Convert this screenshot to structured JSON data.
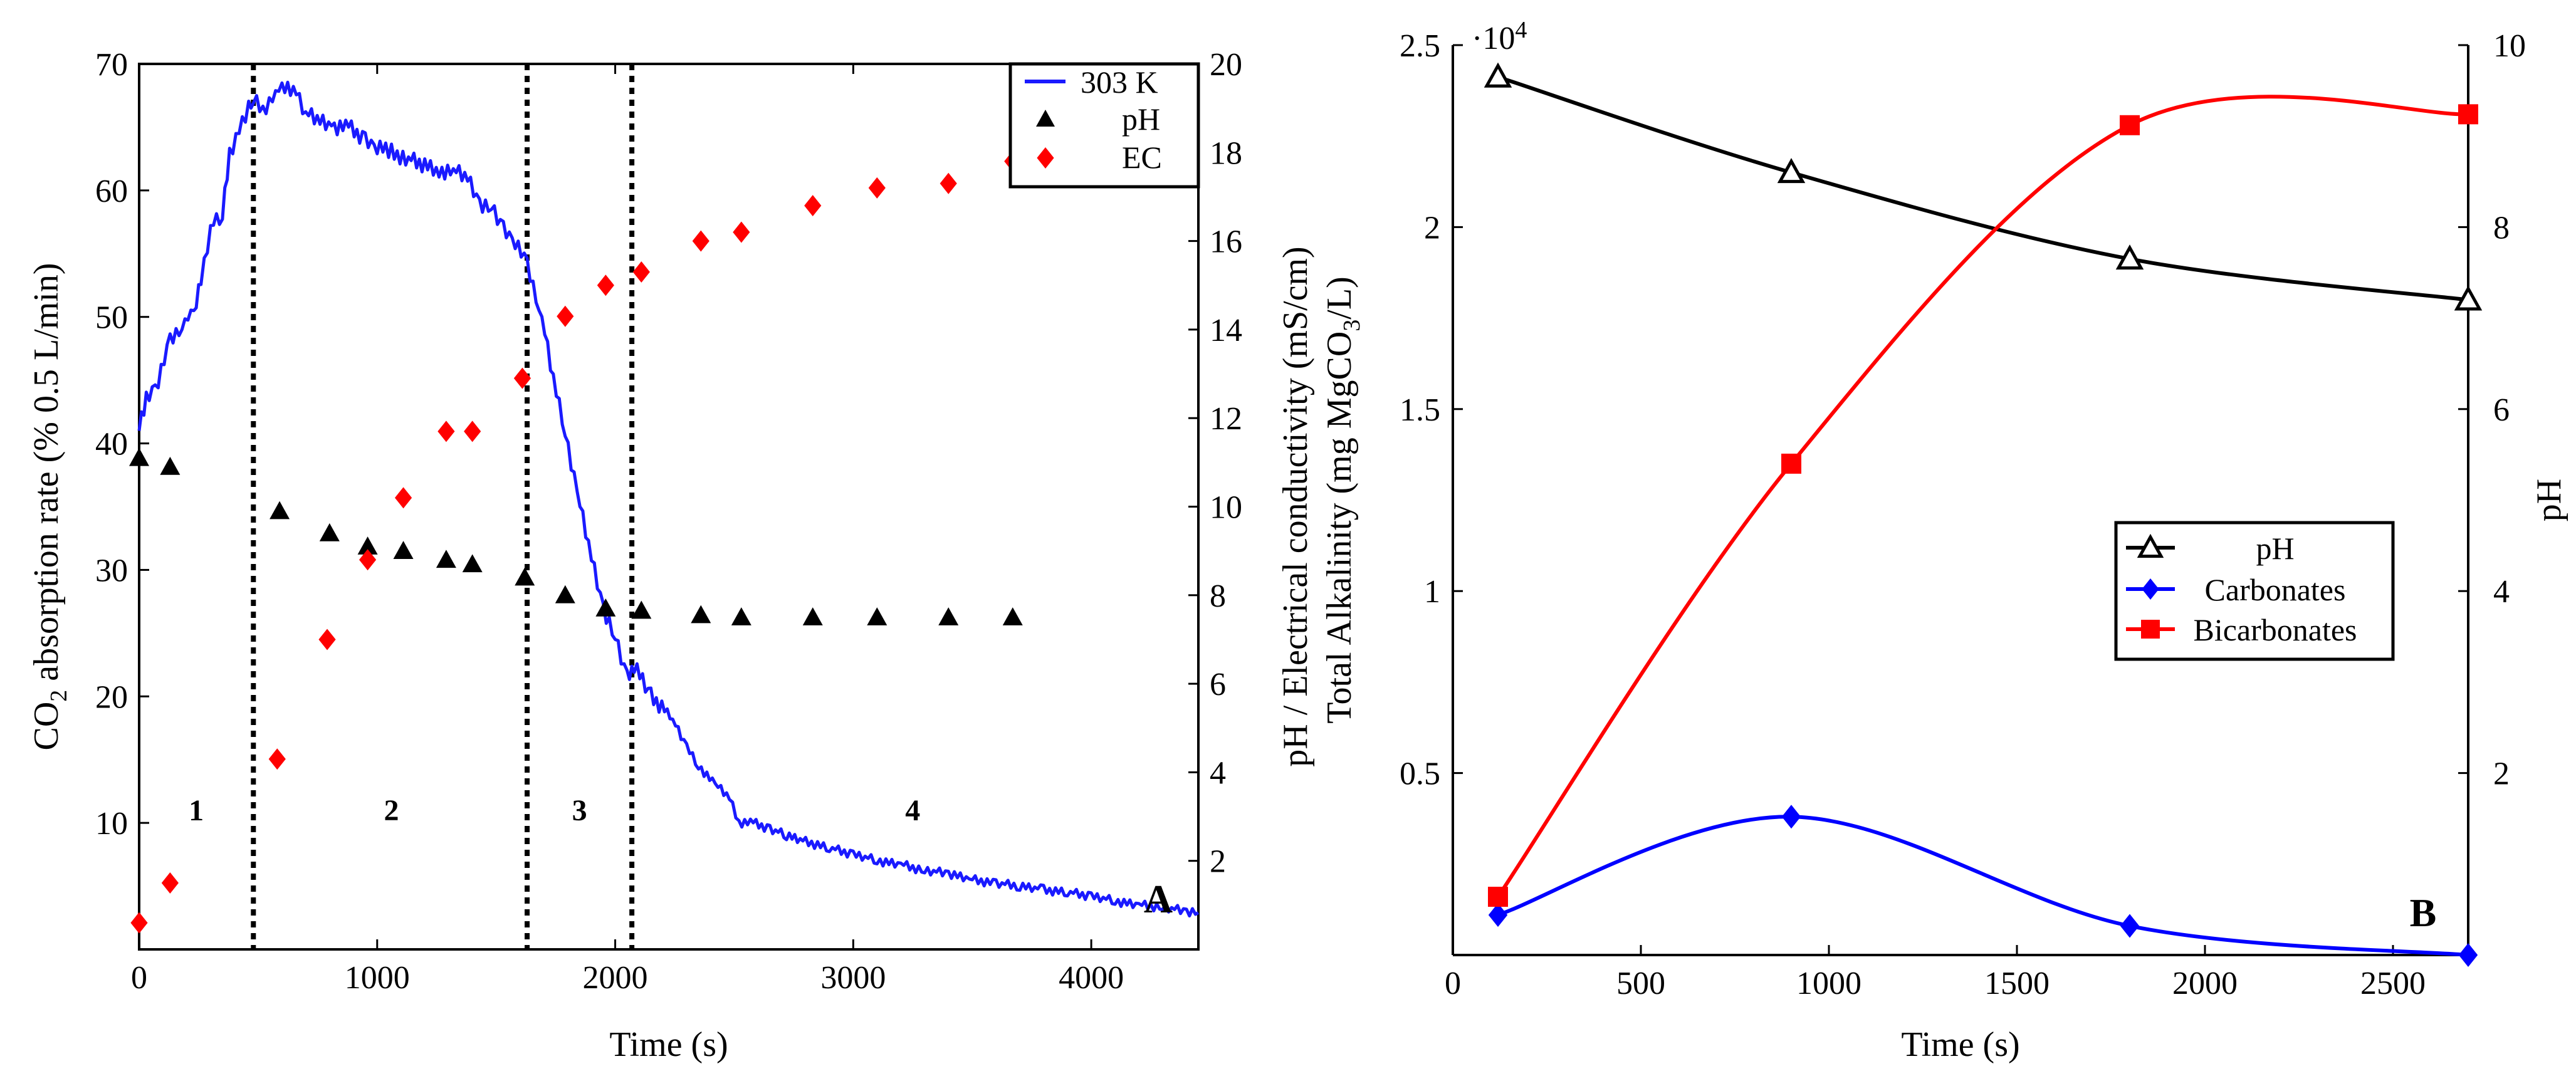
{
  "chart_data": [
    {
      "panel": "A",
      "type": "line+scatter",
      "xlabel": "Time (s)",
      "ylabel_left_main": "CO",
      "ylabel_left_sub": "2",
      "ylabel_left_rest": " absorption rate (% 0.5 L/min)",
      "ylabel_right": "pH / Electrical conductivity (mS/cm)",
      "xlim": [
        0,
        4450
      ],
      "ylim_left": [
        0,
        70
      ],
      "ylim_right": [
        0,
        20
      ],
      "xticks": [
        0,
        1000,
        2000,
        3000,
        4000
      ],
      "yticks_left": [
        10,
        20,
        30,
        40,
        50,
        60,
        70
      ],
      "yticks_right": [
        2,
        4,
        6,
        8,
        10,
        12,
        14,
        16,
        18,
        20
      ],
      "legend": [
        "303 K",
        "pH",
        "EC"
      ],
      "legend_position": "top-right",
      "stage_boundaries": [
        480,
        1630,
        2070
      ],
      "stage_labels": [
        {
          "label": "1",
          "x": 240
        },
        {
          "label": "2",
          "x": 1060
        },
        {
          "label": "3",
          "x": 1850
        },
        {
          "label": "4",
          "x": 3250
        }
      ],
      "stage_label_y": 11,
      "panel_letter": "A",
      "series": [
        {
          "name": "303 K",
          "axis": "left",
          "color": "#1a1aff",
          "points": [
            [
              0,
              41
            ],
            [
              30,
              43.5
            ],
            [
              80,
              45
            ],
            [
              130,
              48
            ],
            [
              180,
              49.5
            ],
            [
              230,
              50
            ],
            [
              260,
              53
            ],
            [
              300,
              57
            ],
            [
              350,
              58
            ],
            [
              380,
              63
            ],
            [
              420,
              64.5
            ],
            [
              460,
              66.5
            ],
            [
              480,
              67.5
            ],
            [
              520,
              66
            ],
            [
              560,
              67.5
            ],
            [
              600,
              68
            ],
            [
              660,
              68
            ],
            [
              700,
              66
            ],
            [
              760,
              65.5
            ],
            [
              820,
              65
            ],
            [
              880,
              65
            ],
            [
              950,
              64
            ],
            [
              1000,
              63.5
            ],
            [
              1060,
              63
            ],
            [
              1120,
              62.5
            ],
            [
              1200,
              62
            ],
            [
              1260,
              61.5
            ],
            [
              1320,
              61.5
            ],
            [
              1380,
              61
            ],
            [
              1430,
              59
            ],
            [
              1480,
              58.5
            ],
            [
              1530,
              57
            ],
            [
              1580,
              56
            ],
            [
              1630,
              54
            ],
            [
              1680,
              51
            ],
            [
              1740,
              45
            ],
            [
              1790,
              41
            ],
            [
              1840,
              36
            ],
            [
              1900,
              31
            ],
            [
              1950,
              27
            ],
            [
              2000,
              24.5
            ],
            [
              2050,
              21.5
            ],
            [
              2080,
              22.5
            ],
            [
              2150,
              20
            ],
            [
              2230,
              18.5
            ],
            [
              2300,
              16
            ],
            [
              2350,
              14.5
            ],
            [
              2420,
              13
            ],
            [
              2480,
              12
            ],
            [
              2520,
              10
            ],
            [
              2580,
              10
            ],
            [
              2650,
              9.5
            ],
            [
              2720,
              9
            ],
            [
              2800,
              8.5
            ],
            [
              2900,
              8
            ],
            [
              3000,
              7.5
            ],
            [
              3100,
              7
            ],
            [
              3200,
              6.7
            ],
            [
              3300,
              6.2
            ],
            [
              3400,
              6
            ],
            [
              3500,
              5.5
            ],
            [
              3600,
              5.2
            ],
            [
              3700,
              5
            ],
            [
              3800,
              4.7
            ],
            [
              3900,
              4.5
            ],
            [
              4000,
              4.2
            ],
            [
              4100,
              3.8
            ],
            [
              4200,
              3.5
            ],
            [
              4300,
              3.3
            ],
            [
              4400,
              3
            ],
            [
              4450,
              2.9
            ]
          ]
        },
        {
          "name": "pH",
          "axis": "right",
          "marker": "triangle",
          "color": "#000000",
          "x": [
            0,
            130,
            590,
            800,
            960,
            1110,
            1290,
            1400,
            1620,
            1790,
            1960,
            2110,
            2360,
            2530,
            2830,
            3100,
            3400,
            3670
          ],
          "values": [
            11.1,
            10.9,
            9.9,
            9.4,
            9.1,
            9.0,
            8.8,
            8.7,
            8.4,
            8.0,
            7.7,
            7.65,
            7.55,
            7.5,
            7.5,
            7.5,
            7.5,
            7.5
          ]
        },
        {
          "name": "EC",
          "axis": "right",
          "marker": "diamond",
          "color": "#ff0000",
          "x": [
            0,
            130,
            580,
            790,
            960,
            1110,
            1290,
            1400,
            1610,
            1790,
            1960,
            2110,
            2360,
            2530,
            2830,
            3100,
            3400,
            3670
          ],
          "values": [
            0.6,
            1.5,
            4.3,
            7.0,
            8.8,
            10.2,
            11.7,
            11.7,
            12.9,
            14.3,
            15.0,
            15.3,
            16.0,
            16.2,
            16.8,
            17.2,
            17.3,
            17.8
          ]
        }
      ]
    },
    {
      "panel": "B",
      "type": "line+scatter",
      "xlabel": "Time (s)",
      "ylabel_left_main": "Total Alkalinity (mg MgCO",
      "ylabel_left_sub": "3",
      "ylabel_left_rest": "/L)",
      "ylabel_right": "pH",
      "exponent_label": "·10",
      "exponent_power": "4",
      "xlim": [
        0,
        2700
      ],
      "ylim_left": [
        0,
        2.5
      ],
      "ylim_right": [
        0,
        10
      ],
      "xticks": [
        0,
        500,
        1000,
        1500,
        2000,
        2500
      ],
      "yticks_left": [
        "0.5",
        "1",
        "1.5",
        "2",
        "2.5"
      ],
      "yticks_left_values": [
        0.5,
        1,
        1.5,
        2,
        2.5
      ],
      "yticks_right": [
        2,
        4,
        6,
        8,
        10
      ],
      "legend": [
        "pH",
        "Carbonates",
        "Bicarbonates"
      ],
      "legend_position": "center-right",
      "panel_letter": "B",
      "series": [
        {
          "name": "pH",
          "axis": "right",
          "marker": "triangle-open",
          "color": "#000000",
          "x": [
            120,
            900,
            1800,
            2700
          ],
          "values": [
            9.65,
            8.6,
            7.65,
            7.2
          ]
        },
        {
          "name": "Carbonates",
          "axis": "left",
          "marker": "diamond",
          "color": "#0000ff",
          "x": [
            120,
            900,
            1800,
            2700
          ],
          "values": [
            0.11,
            0.38,
            0.08,
            0.0
          ]
        },
        {
          "name": "Bicarbonates",
          "axis": "left",
          "marker": "square",
          "color": "#ff0000",
          "x": [
            120,
            900,
            1800,
            2700
          ],
          "values": [
            0.16,
            1.35,
            2.28,
            2.31
          ]
        }
      ]
    }
  ]
}
